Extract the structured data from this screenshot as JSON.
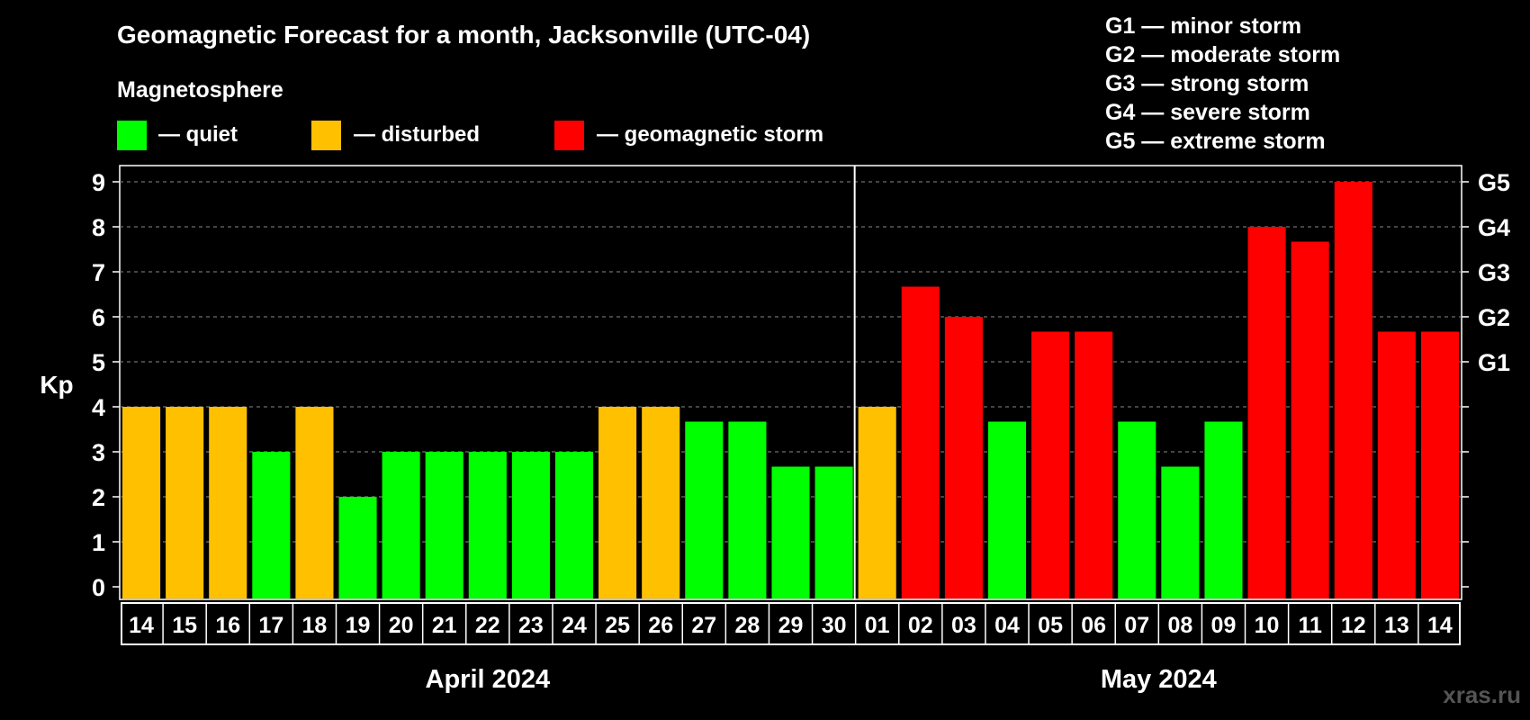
{
  "title": "Geomagnetic Forecast for a month, Jacksonville (UTC-04)",
  "legend": {
    "heading": "Magnetosphere",
    "items": [
      {
        "key": "quiet",
        "label": "— quiet",
        "color": "#00ff00"
      },
      {
        "key": "disturbed",
        "label": "— disturbed",
        "color": "#ffc000"
      },
      {
        "key": "storm",
        "label": "— geomagnetic storm",
        "color": "#ff0000"
      }
    ]
  },
  "storm_scale": [
    "G1 — minor storm",
    "G2 — moderate storm",
    "G3 — strong storm",
    "G4 — severe storm",
    "G5 — extreme storm"
  ],
  "watermark": "xras.ru",
  "chart_data": {
    "type": "bar",
    "ylabel": "Kp",
    "ylim": [
      0,
      9
    ],
    "yticks": [
      "0",
      "1",
      "2",
      "3",
      "4",
      "5",
      "6",
      "7",
      "8",
      "9"
    ],
    "right_axis": [
      {
        "kp": 5,
        "label": "G1"
      },
      {
        "kp": 6,
        "label": "G2"
      },
      {
        "kp": 7,
        "label": "G3"
      },
      {
        "kp": 8,
        "label": "G4"
      },
      {
        "kp": 9,
        "label": "G5"
      }
    ],
    "grid": "dashed horizontal",
    "months": [
      {
        "label": "April 2024",
        "days": 17
      },
      {
        "label": "May 2024",
        "days": 14
      }
    ],
    "categories": [
      "14",
      "15",
      "16",
      "17",
      "18",
      "19",
      "20",
      "21",
      "22",
      "23",
      "24",
      "25",
      "26",
      "27",
      "28",
      "29",
      "30",
      "01",
      "02",
      "03",
      "04",
      "05",
      "06",
      "07",
      "08",
      "09",
      "10",
      "11",
      "12",
      "13",
      "14"
    ],
    "values": [
      4,
      4,
      4,
      3,
      4,
      2,
      3,
      3,
      3,
      3,
      3,
      4,
      4,
      3.67,
      3.67,
      2.67,
      2.67,
      4,
      6.67,
      6,
      3.67,
      5.67,
      5.67,
      3.67,
      2.67,
      3.67,
      8,
      7.67,
      9,
      5.67,
      5.67
    ],
    "levels": [
      "disturbed",
      "disturbed",
      "disturbed",
      "quiet",
      "disturbed",
      "quiet",
      "quiet",
      "quiet",
      "quiet",
      "quiet",
      "quiet",
      "disturbed",
      "disturbed",
      "quiet",
      "quiet",
      "quiet",
      "quiet",
      "disturbed",
      "storm",
      "storm",
      "quiet",
      "storm",
      "storm",
      "quiet",
      "quiet",
      "quiet",
      "storm",
      "storm",
      "storm",
      "storm",
      "storm"
    ]
  }
}
